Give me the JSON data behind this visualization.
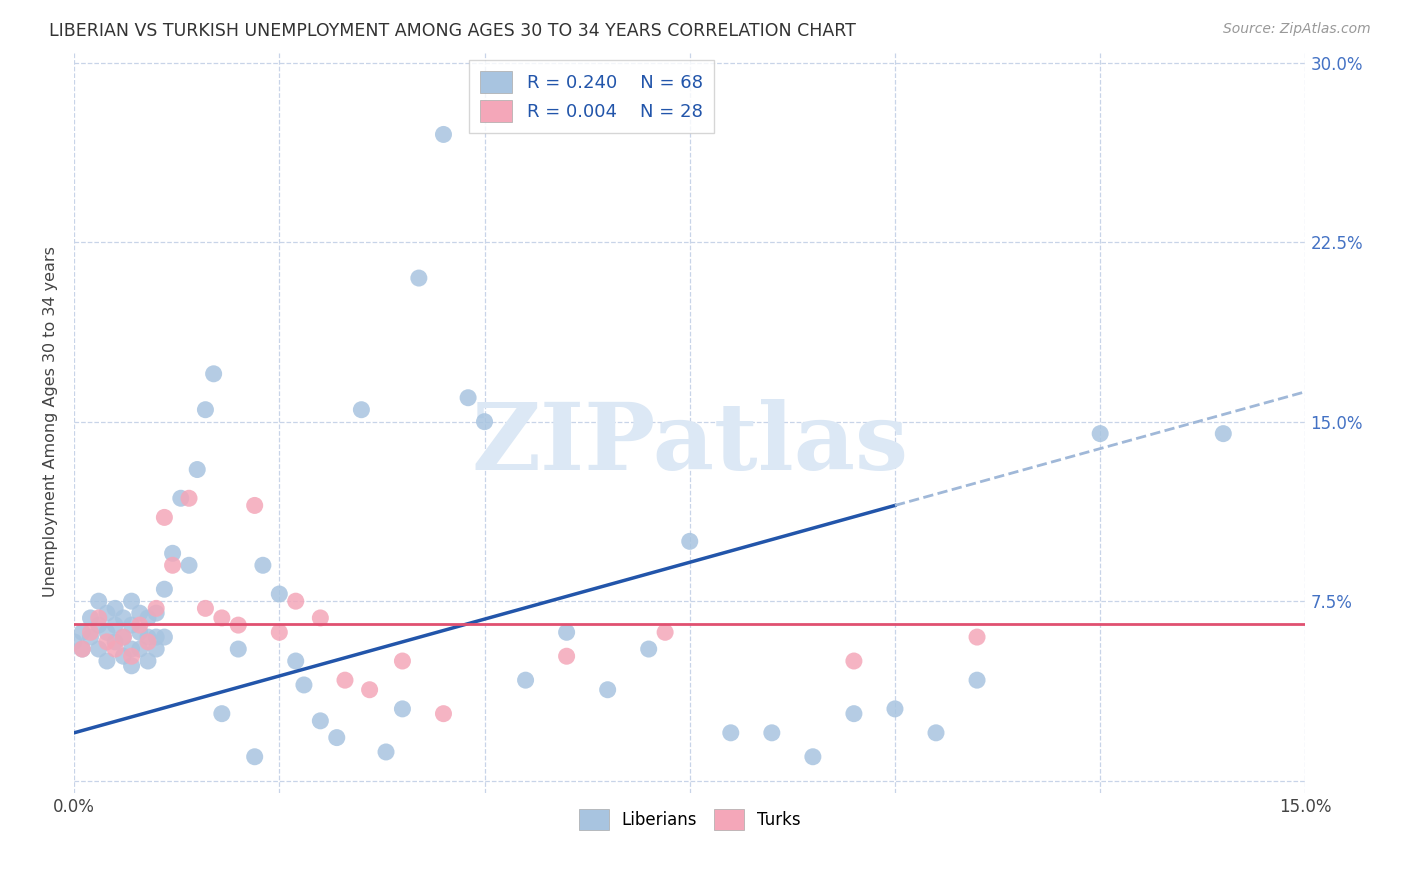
{
  "title": "LIBERIAN VS TURKISH UNEMPLOYMENT AMONG AGES 30 TO 34 YEARS CORRELATION CHART",
  "source": "Source: ZipAtlas.com",
  "ylabel": "Unemployment Among Ages 30 to 34 years",
  "xlim": [
    0.0,
    0.15
  ],
  "ylim": [
    -0.005,
    0.305
  ],
  "liberian_color": "#a8c4e0",
  "turkish_color": "#f4a7b9",
  "liberian_line_color": "#2255aa",
  "turkish_line_color": "#e05070",
  "dashed_line_color": "#a0b8d8",
  "legend_R1": "R = 0.240",
  "legend_N1": "N = 68",
  "legend_R2": "R = 0.004",
  "legend_N2": "N = 28",
  "liberian_x": [
    0.0,
    0.001,
    0.001,
    0.002,
    0.002,
    0.003,
    0.003,
    0.003,
    0.004,
    0.004,
    0.004,
    0.005,
    0.005,
    0.005,
    0.006,
    0.006,
    0.006,
    0.007,
    0.007,
    0.007,
    0.007,
    0.008,
    0.008,
    0.008,
    0.009,
    0.009,
    0.009,
    0.01,
    0.01,
    0.01,
    0.011,
    0.011,
    0.012,
    0.013,
    0.014,
    0.015,
    0.016,
    0.017,
    0.018,
    0.02,
    0.022,
    0.023,
    0.025,
    0.027,
    0.028,
    0.03,
    0.032,
    0.035,
    0.038,
    0.04,
    0.042,
    0.045,
    0.048,
    0.05,
    0.055,
    0.06,
    0.065,
    0.07,
    0.075,
    0.08,
    0.085,
    0.09,
    0.095,
    0.1,
    0.105,
    0.11,
    0.125,
    0.14
  ],
  "liberian_y": [
    0.058,
    0.055,
    0.062,
    0.06,
    0.068,
    0.055,
    0.065,
    0.075,
    0.05,
    0.062,
    0.07,
    0.058,
    0.065,
    0.072,
    0.052,
    0.06,
    0.068,
    0.048,
    0.055,
    0.065,
    0.075,
    0.055,
    0.062,
    0.07,
    0.05,
    0.06,
    0.068,
    0.055,
    0.06,
    0.07,
    0.06,
    0.08,
    0.095,
    0.118,
    0.09,
    0.13,
    0.155,
    0.17,
    0.028,
    0.055,
    0.01,
    0.09,
    0.078,
    0.05,
    0.04,
    0.025,
    0.018,
    0.155,
    0.012,
    0.03,
    0.21,
    0.27,
    0.16,
    0.15,
    0.042,
    0.062,
    0.038,
    0.055,
    0.1,
    0.02,
    0.02,
    0.01,
    0.028,
    0.03,
    0.02,
    0.042,
    0.145,
    0.145
  ],
  "turkish_x": [
    0.001,
    0.002,
    0.003,
    0.004,
    0.005,
    0.006,
    0.007,
    0.008,
    0.009,
    0.01,
    0.011,
    0.012,
    0.014,
    0.016,
    0.018,
    0.02,
    0.022,
    0.025,
    0.027,
    0.03,
    0.033,
    0.036,
    0.04,
    0.045,
    0.06,
    0.072,
    0.095,
    0.11
  ],
  "turkish_y": [
    0.055,
    0.062,
    0.068,
    0.058,
    0.055,
    0.06,
    0.052,
    0.065,
    0.058,
    0.072,
    0.11,
    0.09,
    0.118,
    0.072,
    0.068,
    0.065,
    0.115,
    0.062,
    0.075,
    0.068,
    0.042,
    0.038,
    0.05,
    0.028,
    0.052,
    0.062,
    0.05,
    0.06
  ],
  "background_color": "#ffffff",
  "grid_color": "#c8d4e8",
  "watermark_text": "ZIPatlas",
  "watermark_color": "#dce8f5"
}
